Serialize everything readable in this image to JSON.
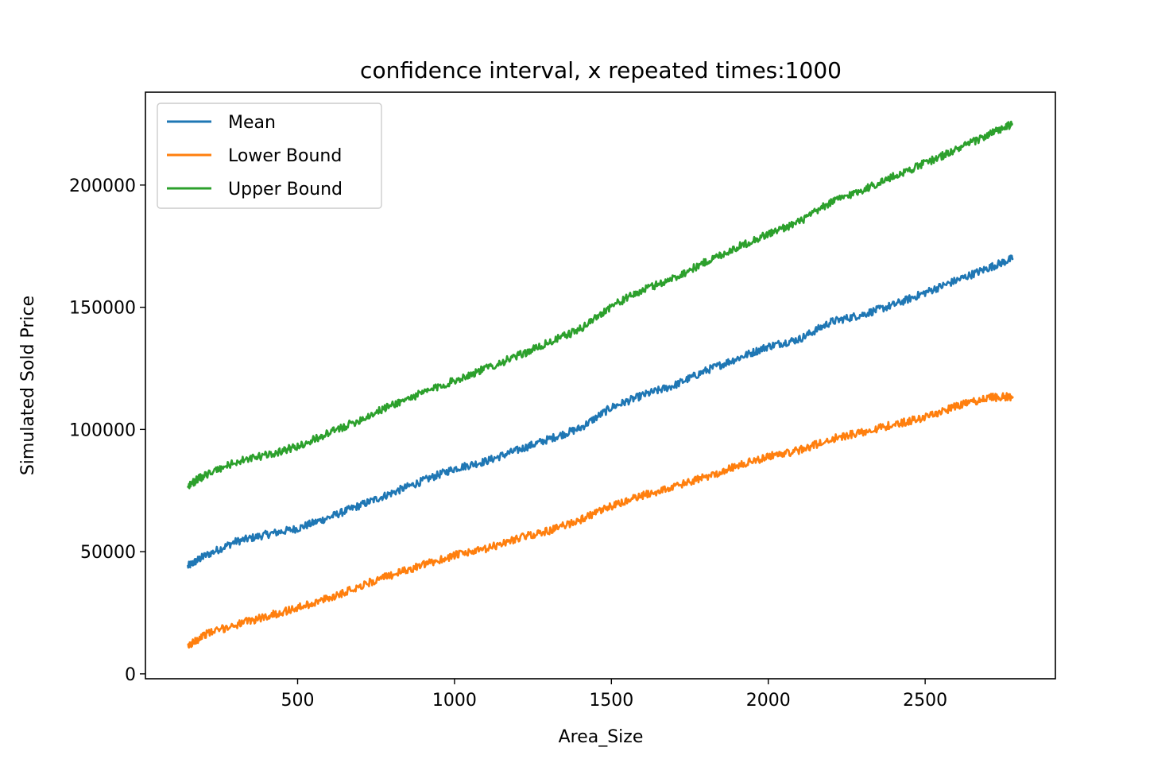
{
  "chart_data": {
    "type": "line",
    "title": "confidence interval, x repeated times:1000",
    "xlabel": "Area_Size",
    "ylabel": "Simulated Sold Price",
    "xlim": [
      15,
      2915
    ],
    "ylim": [
      -2000,
      238000
    ],
    "xticks": [
      500,
      1000,
      1500,
      2000,
      2500
    ],
    "yticks": [
      0,
      50000,
      100000,
      150000,
      200000
    ],
    "grid": false,
    "legend_position": "top-left",
    "series": [
      {
        "name": "Mean",
        "color": "#1f77b4",
        "x": [
          150,
          200,
          300,
          400,
          500,
          600,
          700,
          800,
          900,
          1000,
          1100,
          1200,
          1300,
          1400,
          1500,
          1600,
          1700,
          1800,
          1900,
          2000,
          2100,
          2200,
          2300,
          2400,
          2500,
          2600,
          2700,
          2780
        ],
        "values": [
          44000,
          48000,
          54000,
          57000,
          59500,
          64000,
          69000,
          74000,
          79000,
          84000,
          87000,
          91500,
          96000,
          100500,
          109000,
          114000,
          118000,
          124000,
          129000,
          134000,
          137000,
          144000,
          147000,
          151000,
          156000,
          161000,
          166000,
          170000
        ]
      },
      {
        "name": "Lower Bound",
        "color": "#ff7f0e",
        "x": [
          150,
          200,
          300,
          400,
          500,
          600,
          700,
          800,
          900,
          1000,
          1100,
          1200,
          1300,
          1400,
          1500,
          1600,
          1700,
          1800,
          1900,
          2000,
          2100,
          2200,
          2300,
          2400,
          2500,
          2600,
          2700,
          2780
        ],
        "values": [
          11000,
          16000,
          20000,
          23500,
          27000,
          31000,
          36000,
          40500,
          44500,
          48500,
          51000,
          55500,
          58500,
          63000,
          68500,
          73000,
          76500,
          80500,
          85000,
          89000,
          91500,
          96000,
          99000,
          102000,
          105000,
          109500,
          113000,
          113500
        ]
      },
      {
        "name": "Upper Bound",
        "color": "#2ca02c",
        "x": [
          150,
          200,
          300,
          400,
          500,
          600,
          700,
          800,
          900,
          1000,
          1100,
          1200,
          1300,
          1400,
          1500,
          1600,
          1700,
          1800,
          1900,
          2000,
          2100,
          2200,
          2300,
          2400,
          2500,
          2600,
          2700,
          2780
        ],
        "values": [
          77000,
          81000,
          86500,
          89500,
          93000,
          98500,
          104000,
          110000,
          115000,
          120000,
          125000,
          130000,
          135500,
          141000,
          150500,
          157000,
          162000,
          168500,
          174500,
          180000,
          185000,
          193000,
          198000,
          203500,
          209000,
          214500,
          220500,
          225000
        ]
      }
    ]
  }
}
